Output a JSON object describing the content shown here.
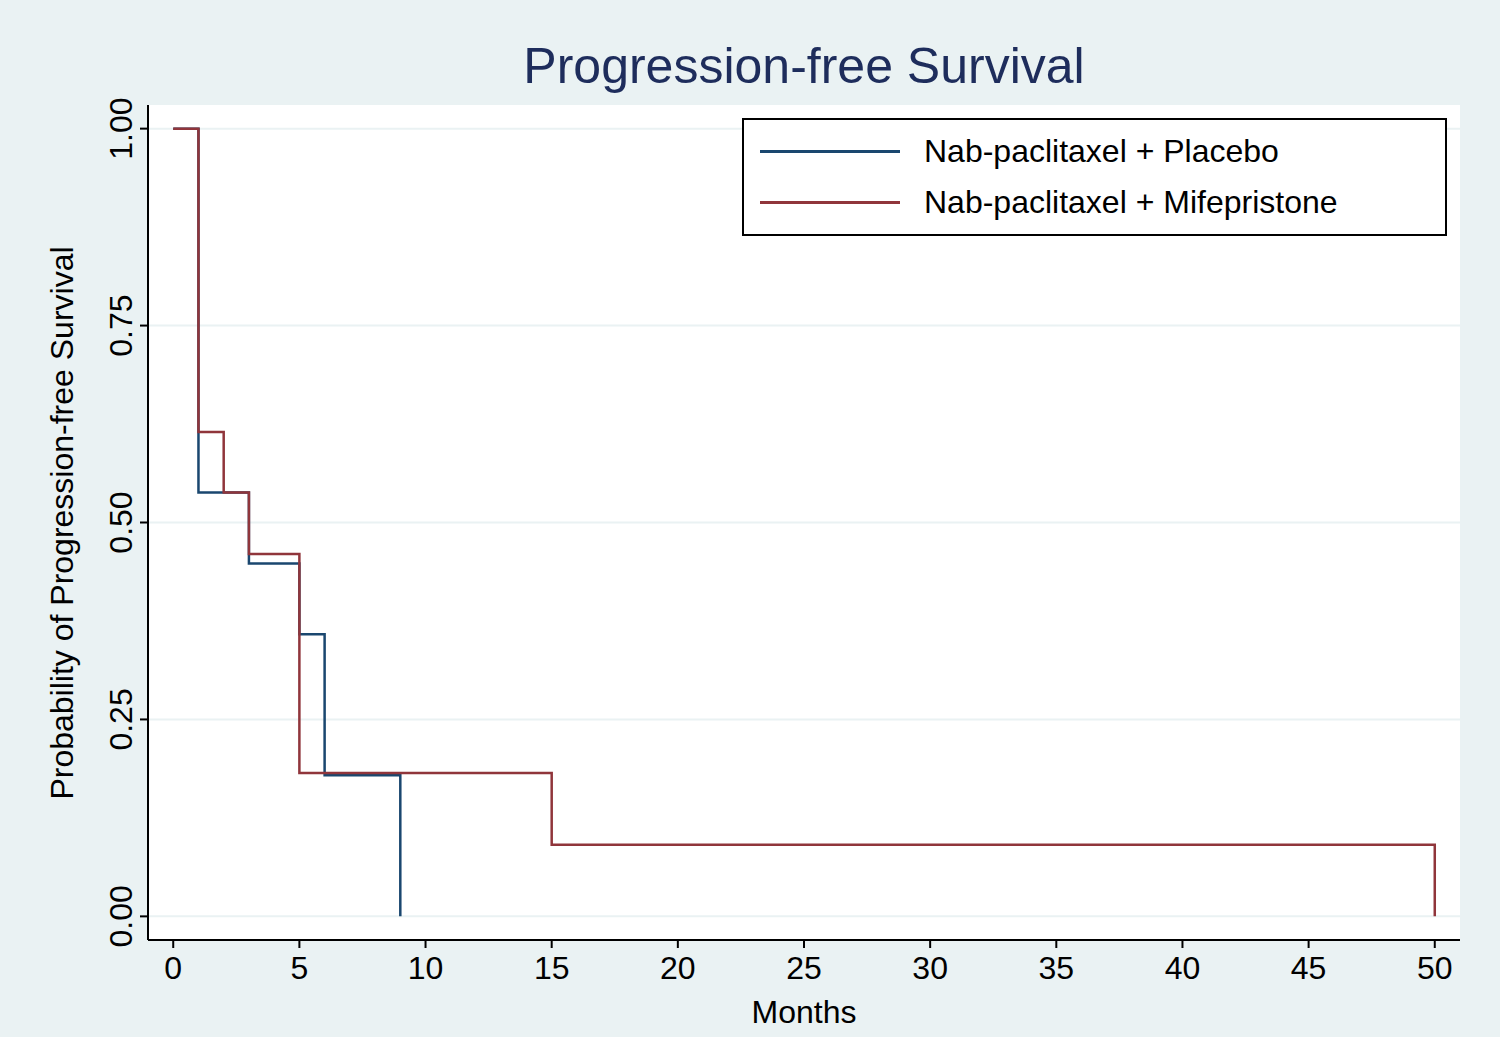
{
  "chart_data": {
    "type": "step",
    "title": "Progression-free Survival",
    "x_label": "Months",
    "y_label": "Probability of Progression-free Survival",
    "xlim": [
      -1,
      51
    ],
    "xticks": [
      0,
      5,
      10,
      15,
      20,
      25,
      30,
      35,
      40,
      45,
      50
    ],
    "ylim": [
      -0.03,
      1.03
    ],
    "yticks": [
      {
        "value": 0,
        "label": "0.00"
      },
      {
        "value": 0.25,
        "label": "0.25"
      },
      {
        "value": 0.5,
        "label": "0.50"
      },
      {
        "value": 0.75,
        "label": "0.75"
      },
      {
        "value": 1,
        "label": "1.00"
      }
    ],
    "grid": true,
    "legend": "top-right",
    "series": [
      {
        "name": "Nab-paclitaxel + Placebo",
        "color": "#1a476f",
        "x": [
          0,
          1,
          3,
          5,
          6,
          9
        ],
        "values": [
          1,
          0.538,
          0.448,
          0.358,
          0.179,
          0
        ]
      },
      {
        "name": "Nab-paclitaxel + Mifepristone",
        "color": "#90353b",
        "x": [
          0,
          1,
          2,
          3,
          5,
          15,
          50
        ],
        "values": [
          1,
          0.615,
          0.538,
          0.46,
          0.182,
          0.091,
          0
        ]
      }
    ]
  }
}
